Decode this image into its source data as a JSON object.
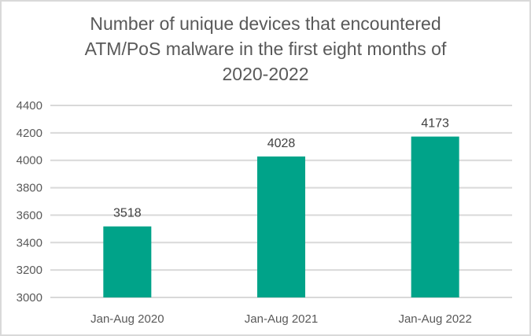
{
  "chart_data": {
    "type": "bar",
    "title_lines": [
      "Number of unique devices that encountered",
      "ATM/PoS malware in the first eight months of",
      "2020-2022"
    ],
    "title": "Number of unique devices that encountered ATM/PoS malware in the first eight months of 2020-2022",
    "categories": [
      "Jan-Aug 2020",
      "Jan-Aug 2021",
      "Jan-Aug 2022"
    ],
    "values": [
      3518,
      4028,
      4173
    ],
    "data_labels": [
      "3518",
      "4028",
      "4173"
    ],
    "xlabel": "",
    "ylabel": "",
    "ylim": [
      3000,
      4400
    ],
    "yticks": [
      3000,
      3200,
      3400,
      3600,
      3800,
      4000,
      4200,
      4400
    ],
    "grid": true,
    "legend": "none",
    "bar_color": "#00a389"
  }
}
